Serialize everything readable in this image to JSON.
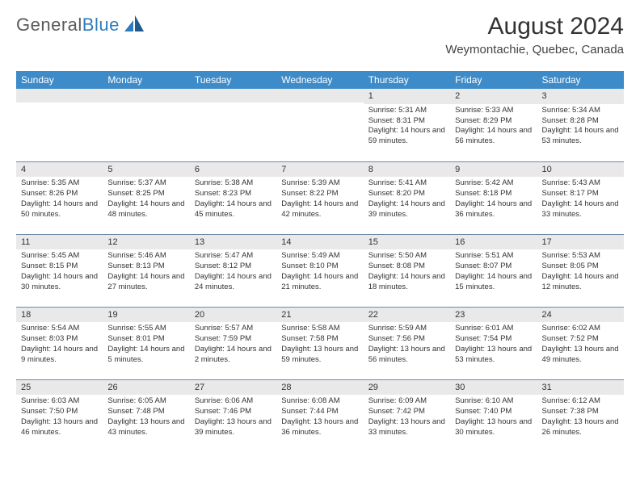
{
  "colors": {
    "brand_blue": "#2f7bbf",
    "header_blue": "#3d8bc9",
    "light_grey": "#e9e9e9",
    "row_divider": "#6b8aa8"
  },
  "logo": {
    "text_a": "General",
    "text_b": "Blue"
  },
  "header": {
    "month": "August 2024",
    "location": "Weymontachie, Quebec, Canada"
  },
  "weekdays": [
    "Sunday",
    "Monday",
    "Tuesday",
    "Wednesday",
    "Thursday",
    "Friday",
    "Saturday"
  ],
  "weeks": [
    [
      null,
      null,
      null,
      null,
      {
        "n": "1",
        "sr": "Sunrise: 5:31 AM",
        "ss": "Sunset: 8:31 PM",
        "dl": "Daylight: 14 hours and 59 minutes."
      },
      {
        "n": "2",
        "sr": "Sunrise: 5:33 AM",
        "ss": "Sunset: 8:29 PM",
        "dl": "Daylight: 14 hours and 56 minutes."
      },
      {
        "n": "3",
        "sr": "Sunrise: 5:34 AM",
        "ss": "Sunset: 8:28 PM",
        "dl": "Daylight: 14 hours and 53 minutes."
      }
    ],
    [
      {
        "n": "4",
        "sr": "Sunrise: 5:35 AM",
        "ss": "Sunset: 8:26 PM",
        "dl": "Daylight: 14 hours and 50 minutes."
      },
      {
        "n": "5",
        "sr": "Sunrise: 5:37 AM",
        "ss": "Sunset: 8:25 PM",
        "dl": "Daylight: 14 hours and 48 minutes."
      },
      {
        "n": "6",
        "sr": "Sunrise: 5:38 AM",
        "ss": "Sunset: 8:23 PM",
        "dl": "Daylight: 14 hours and 45 minutes."
      },
      {
        "n": "7",
        "sr": "Sunrise: 5:39 AM",
        "ss": "Sunset: 8:22 PM",
        "dl": "Daylight: 14 hours and 42 minutes."
      },
      {
        "n": "8",
        "sr": "Sunrise: 5:41 AM",
        "ss": "Sunset: 8:20 PM",
        "dl": "Daylight: 14 hours and 39 minutes."
      },
      {
        "n": "9",
        "sr": "Sunrise: 5:42 AM",
        "ss": "Sunset: 8:18 PM",
        "dl": "Daylight: 14 hours and 36 minutes."
      },
      {
        "n": "10",
        "sr": "Sunrise: 5:43 AM",
        "ss": "Sunset: 8:17 PM",
        "dl": "Daylight: 14 hours and 33 minutes."
      }
    ],
    [
      {
        "n": "11",
        "sr": "Sunrise: 5:45 AM",
        "ss": "Sunset: 8:15 PM",
        "dl": "Daylight: 14 hours and 30 minutes."
      },
      {
        "n": "12",
        "sr": "Sunrise: 5:46 AM",
        "ss": "Sunset: 8:13 PM",
        "dl": "Daylight: 14 hours and 27 minutes."
      },
      {
        "n": "13",
        "sr": "Sunrise: 5:47 AM",
        "ss": "Sunset: 8:12 PM",
        "dl": "Daylight: 14 hours and 24 minutes."
      },
      {
        "n": "14",
        "sr": "Sunrise: 5:49 AM",
        "ss": "Sunset: 8:10 PM",
        "dl": "Daylight: 14 hours and 21 minutes."
      },
      {
        "n": "15",
        "sr": "Sunrise: 5:50 AM",
        "ss": "Sunset: 8:08 PM",
        "dl": "Daylight: 14 hours and 18 minutes."
      },
      {
        "n": "16",
        "sr": "Sunrise: 5:51 AM",
        "ss": "Sunset: 8:07 PM",
        "dl": "Daylight: 14 hours and 15 minutes."
      },
      {
        "n": "17",
        "sr": "Sunrise: 5:53 AM",
        "ss": "Sunset: 8:05 PM",
        "dl": "Daylight: 14 hours and 12 minutes."
      }
    ],
    [
      {
        "n": "18",
        "sr": "Sunrise: 5:54 AM",
        "ss": "Sunset: 8:03 PM",
        "dl": "Daylight: 14 hours and 9 minutes."
      },
      {
        "n": "19",
        "sr": "Sunrise: 5:55 AM",
        "ss": "Sunset: 8:01 PM",
        "dl": "Daylight: 14 hours and 5 minutes."
      },
      {
        "n": "20",
        "sr": "Sunrise: 5:57 AM",
        "ss": "Sunset: 7:59 PM",
        "dl": "Daylight: 14 hours and 2 minutes."
      },
      {
        "n": "21",
        "sr": "Sunrise: 5:58 AM",
        "ss": "Sunset: 7:58 PM",
        "dl": "Daylight: 13 hours and 59 minutes."
      },
      {
        "n": "22",
        "sr": "Sunrise: 5:59 AM",
        "ss": "Sunset: 7:56 PM",
        "dl": "Daylight: 13 hours and 56 minutes."
      },
      {
        "n": "23",
        "sr": "Sunrise: 6:01 AM",
        "ss": "Sunset: 7:54 PM",
        "dl": "Daylight: 13 hours and 53 minutes."
      },
      {
        "n": "24",
        "sr": "Sunrise: 6:02 AM",
        "ss": "Sunset: 7:52 PM",
        "dl": "Daylight: 13 hours and 49 minutes."
      }
    ],
    [
      {
        "n": "25",
        "sr": "Sunrise: 6:03 AM",
        "ss": "Sunset: 7:50 PM",
        "dl": "Daylight: 13 hours and 46 minutes."
      },
      {
        "n": "26",
        "sr": "Sunrise: 6:05 AM",
        "ss": "Sunset: 7:48 PM",
        "dl": "Daylight: 13 hours and 43 minutes."
      },
      {
        "n": "27",
        "sr": "Sunrise: 6:06 AM",
        "ss": "Sunset: 7:46 PM",
        "dl": "Daylight: 13 hours and 39 minutes."
      },
      {
        "n": "28",
        "sr": "Sunrise: 6:08 AM",
        "ss": "Sunset: 7:44 PM",
        "dl": "Daylight: 13 hours and 36 minutes."
      },
      {
        "n": "29",
        "sr": "Sunrise: 6:09 AM",
        "ss": "Sunset: 7:42 PM",
        "dl": "Daylight: 13 hours and 33 minutes."
      },
      {
        "n": "30",
        "sr": "Sunrise: 6:10 AM",
        "ss": "Sunset: 7:40 PM",
        "dl": "Daylight: 13 hours and 30 minutes."
      },
      {
        "n": "31",
        "sr": "Sunrise: 6:12 AM",
        "ss": "Sunset: 7:38 PM",
        "dl": "Daylight: 13 hours and 26 minutes."
      }
    ]
  ]
}
